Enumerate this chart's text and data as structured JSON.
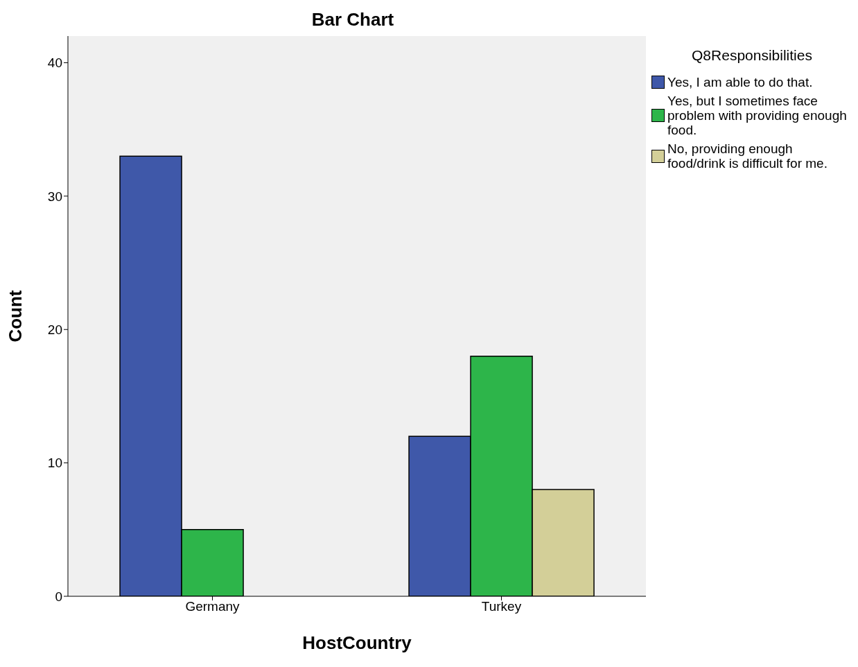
{
  "chart_data": {
    "type": "bar",
    "title": "Bar Chart",
    "xlabel": "HostCountry",
    "ylabel": "Count",
    "legend_title": "Q8Responsibilities",
    "categories": [
      "Germany",
      "Turkey"
    ],
    "series": [
      {
        "name": "Yes, I am able to do that.",
        "color": "#3f58a9",
        "values": [
          33,
          12
        ]
      },
      {
        "name": "Yes, but I sometimes face problem with providing enough food.",
        "color": "#2db54a",
        "values": [
          5,
          18
        ]
      },
      {
        "name": "No, providing enough food/drink is difficult for me.",
        "color": "#d3cf98",
        "values": [
          null,
          8
        ]
      }
    ],
    "ylim": [
      0,
      42
    ],
    "yticks": [
      0,
      10,
      20,
      30,
      40
    ],
    "legend": "top right"
  }
}
